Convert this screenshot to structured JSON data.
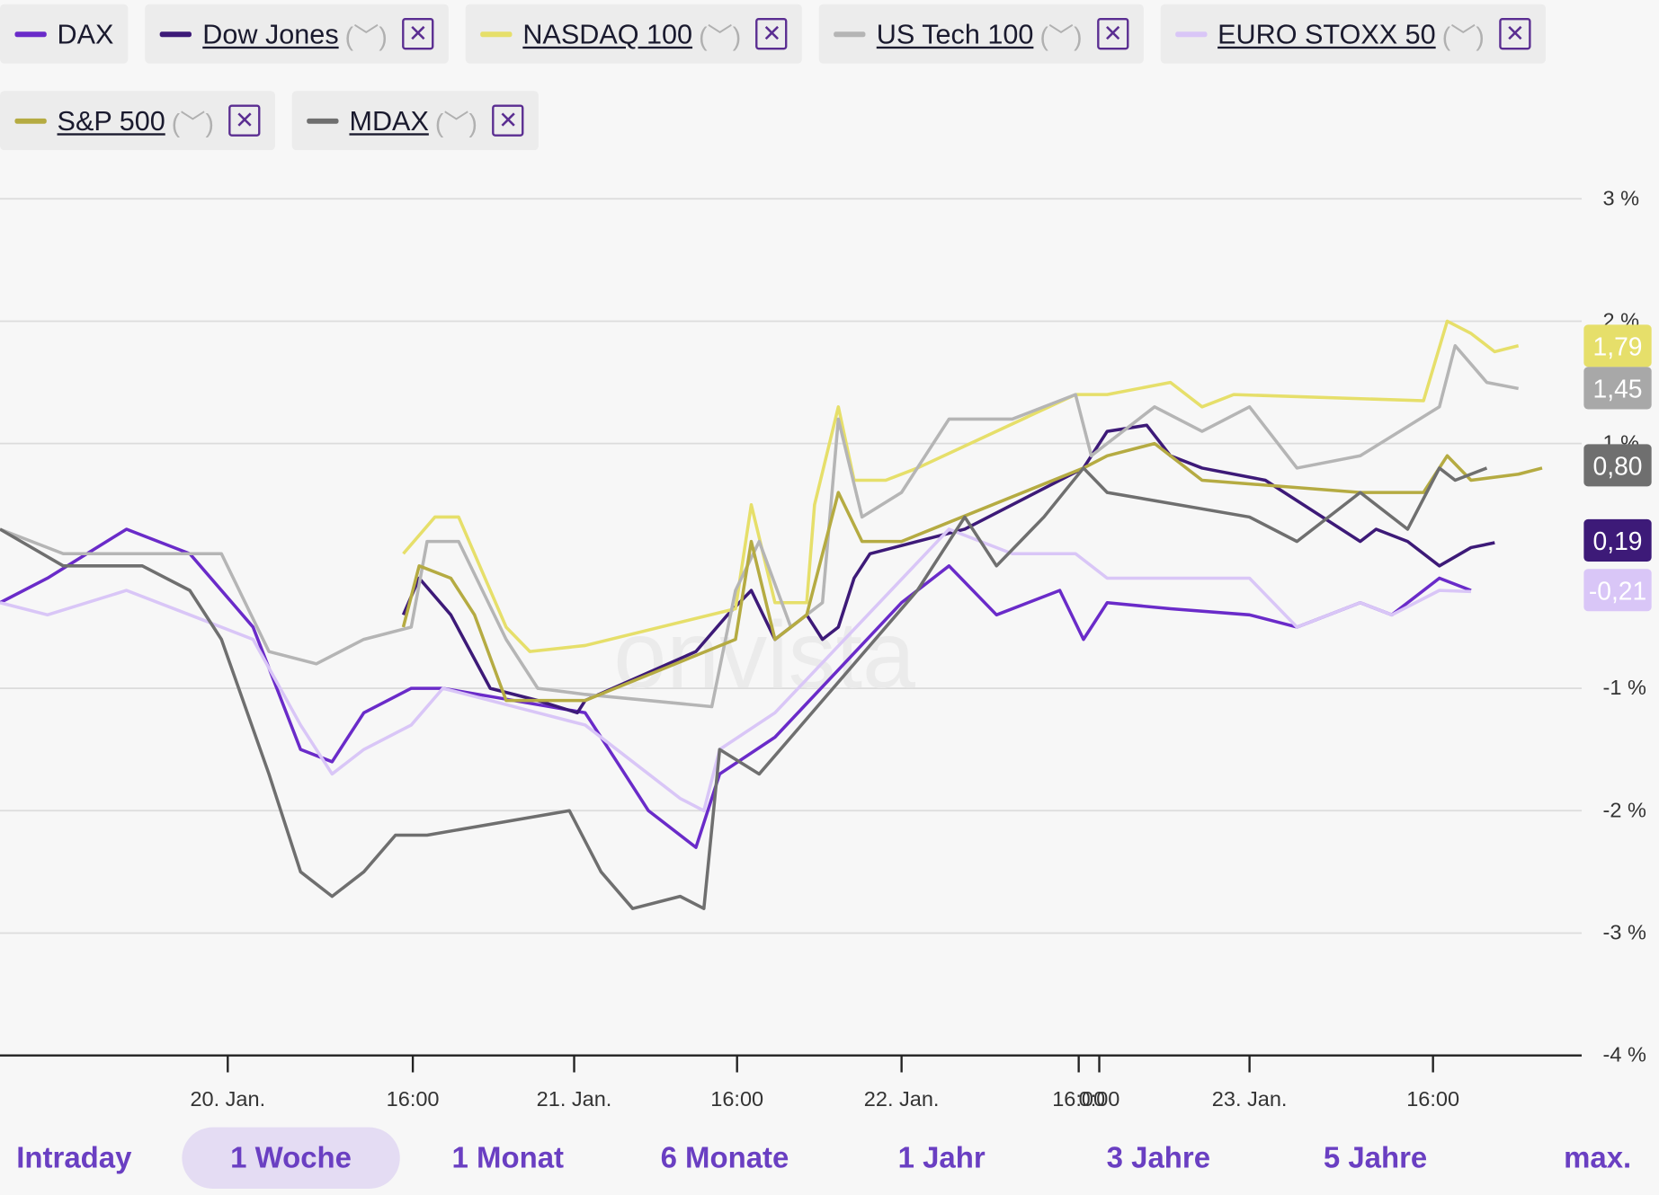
{
  "legend": [
    {
      "name": "DAX",
      "color": "#6a2bc9",
      "removable": false
    },
    {
      "name": "Dow Jones",
      "color": "#3d1a78",
      "removable": true
    },
    {
      "name": "NASDAQ 100",
      "color": "#e6df6a",
      "removable": true
    },
    {
      "name": "US Tech 100",
      "color": "#b5b5b5",
      "removable": true
    },
    {
      "name": "EURO STOXX 50",
      "color": "#d9c6f7",
      "removable": true
    },
    {
      "name": "S&P 500",
      "color": "#b5ab42",
      "removable": true
    },
    {
      "name": "MDAX",
      "color": "#6f6f6f",
      "removable": true
    }
  ],
  "chip_text": {
    "chevron": "(﹀)",
    "close": "✕"
  },
  "watermark": "onvista",
  "tabs": [
    {
      "label": "Intraday",
      "active": false
    },
    {
      "label": "1 Woche",
      "active": true
    },
    {
      "label": "1 Monat",
      "active": false
    },
    {
      "label": "6 Monate",
      "active": false
    },
    {
      "label": "1 Jahr",
      "active": false
    },
    {
      "label": "3 Jahre",
      "active": false
    },
    {
      "label": "5 Jahre",
      "active": false
    },
    {
      "label": "max.",
      "active": false
    }
  ],
  "chart_data": {
    "type": "line",
    "ylim": [
      -4,
      3
    ],
    "y_ticks": [
      {
        "v": 3,
        "label": "3 %"
      },
      {
        "v": 2,
        "label": "2 %"
      },
      {
        "v": 1,
        "label": "1 %"
      },
      {
        "v": -1,
        "label": "-1 %"
      },
      {
        "v": -2,
        "label": "-2 %"
      },
      {
        "v": -3,
        "label": "-3 %"
      },
      {
        "v": -4,
        "label": "-4 %"
      }
    ],
    "x_ticks": [
      {
        "t": 0.144,
        "label": "20. Jan."
      },
      {
        "t": 0.261,
        "label": "16:00"
      },
      {
        "t": 0.363,
        "label": "21. Jan."
      },
      {
        "t": 0.466,
        "label": "16:00"
      },
      {
        "t": 0.57,
        "label": "22. Jan."
      },
      {
        "t": 0.682,
        "label": "16:00"
      },
      {
        "t": 0.695,
        "label": "0:00"
      },
      {
        "t": 0.79,
        "label": "23. Jan."
      },
      {
        "t": 0.906,
        "label": "16:00"
      }
    ],
    "end_labels": [
      {
        "label": "1,79",
        "value": 1.79,
        "color": "#e6df6a"
      },
      {
        "label": "1,45",
        "value": 1.45,
        "color": "#a8a8a8"
      },
      {
        "label": "0,80",
        "value": 0.8,
        "color": "#6f6f6f"
      },
      {
        "label": "0,19",
        "value": 0.19,
        "color": "#3d1a78"
      },
      {
        "label": "-0,21",
        "value": -0.21,
        "color": "#d9c6f7"
      }
    ],
    "series": [
      {
        "name": "DAX",
        "color": "#6a2bc9",
        "points": [
          [
            0,
            -0.3
          ],
          [
            0.03,
            -0.1
          ],
          [
            0.08,
            0.3
          ],
          [
            0.12,
            0.1
          ],
          [
            0.16,
            -0.5
          ],
          [
            0.19,
            -1.5
          ],
          [
            0.21,
            -1.6
          ],
          [
            0.23,
            -1.2
          ],
          [
            0.26,
            -1.0
          ],
          [
            0.28,
            -1.0
          ],
          [
            0.37,
            -1.2
          ],
          [
            0.39,
            -1.6
          ],
          [
            0.41,
            -2.0
          ],
          [
            0.44,
            -2.3
          ],
          [
            0.455,
            -1.7
          ],
          [
            0.49,
            -1.4
          ],
          [
            0.57,
            -0.3
          ],
          [
            0.6,
            0.0
          ],
          [
            0.63,
            -0.4
          ],
          [
            0.67,
            -0.2
          ],
          [
            0.685,
            -0.6
          ],
          [
            0.7,
            -0.3
          ],
          [
            0.74,
            -0.35
          ],
          [
            0.79,
            -0.4
          ],
          [
            0.82,
            -0.5
          ],
          [
            0.86,
            -0.3
          ],
          [
            0.88,
            -0.4
          ],
          [
            0.91,
            -0.1
          ],
          [
            0.93,
            -0.2
          ]
        ]
      },
      {
        "name": "Dow Jones",
        "color": "#3d1a78",
        "points": [
          [
            0.255,
            -0.4
          ],
          [
            0.265,
            -0.1
          ],
          [
            0.285,
            -0.4
          ],
          [
            0.31,
            -1.0
          ],
          [
            0.34,
            -1.1
          ],
          [
            0.365,
            -1.2
          ],
          [
            0.37,
            -1.1
          ],
          [
            0.44,
            -0.7
          ],
          [
            0.46,
            -0.4
          ],
          [
            0.475,
            -0.2
          ],
          [
            0.49,
            -0.6
          ],
          [
            0.51,
            -0.4
          ],
          [
            0.52,
            -0.6
          ],
          [
            0.53,
            -0.5
          ],
          [
            0.54,
            -0.1
          ],
          [
            0.55,
            0.1
          ],
          [
            0.61,
            0.3
          ],
          [
            0.685,
            0.8
          ],
          [
            0.7,
            1.1
          ],
          [
            0.725,
            1.15
          ],
          [
            0.74,
            0.9
          ],
          [
            0.76,
            0.8
          ],
          [
            0.8,
            0.7
          ],
          [
            0.86,
            0.2
          ],
          [
            0.87,
            0.3
          ],
          [
            0.89,
            0.2
          ],
          [
            0.91,
            0.0
          ],
          [
            0.93,
            0.15
          ],
          [
            0.945,
            0.19
          ]
        ]
      },
      {
        "name": "NASDAQ 100",
        "color": "#e6df6a",
        "points": [
          [
            0.255,
            0.1
          ],
          [
            0.275,
            0.4
          ],
          [
            0.29,
            0.4
          ],
          [
            0.32,
            -0.5
          ],
          [
            0.335,
            -0.7
          ],
          [
            0.37,
            -0.65
          ],
          [
            0.465,
            -0.35
          ],
          [
            0.475,
            0.5
          ],
          [
            0.49,
            -0.3
          ],
          [
            0.51,
            -0.3
          ],
          [
            0.515,
            0.5
          ],
          [
            0.53,
            1.3
          ],
          [
            0.54,
            0.7
          ],
          [
            0.56,
            0.7
          ],
          [
            0.58,
            0.8
          ],
          [
            0.68,
            1.4
          ],
          [
            0.7,
            1.4
          ],
          [
            0.74,
            1.5
          ],
          [
            0.76,
            1.3
          ],
          [
            0.78,
            1.4
          ],
          [
            0.9,
            1.35
          ],
          [
            0.915,
            2.0
          ],
          [
            0.93,
            1.9
          ],
          [
            0.945,
            1.75
          ],
          [
            0.96,
            1.8
          ]
        ]
      },
      {
        "name": "US Tech 100",
        "color": "#b5b5b5",
        "points": [
          [
            0,
            0.3
          ],
          [
            0.04,
            0.1
          ],
          [
            0.12,
            0.1
          ],
          [
            0.14,
            0.1
          ],
          [
            0.17,
            -0.7
          ],
          [
            0.2,
            -0.8
          ],
          [
            0.23,
            -0.6
          ],
          [
            0.26,
            -0.5
          ],
          [
            0.27,
            0.2
          ],
          [
            0.29,
            0.2
          ],
          [
            0.32,
            -0.6
          ],
          [
            0.34,
            -1.0
          ],
          [
            0.37,
            -1.05
          ],
          [
            0.45,
            -1.15
          ],
          [
            0.465,
            -0.2
          ],
          [
            0.48,
            0.2
          ],
          [
            0.5,
            -0.5
          ],
          [
            0.52,
            -0.3
          ],
          [
            0.53,
            1.2
          ],
          [
            0.545,
            0.4
          ],
          [
            0.57,
            0.6
          ],
          [
            0.6,
            1.2
          ],
          [
            0.64,
            1.2
          ],
          [
            0.68,
            1.4
          ],
          [
            0.69,
            0.9
          ],
          [
            0.73,
            1.3
          ],
          [
            0.76,
            1.1
          ],
          [
            0.79,
            1.3
          ],
          [
            0.82,
            0.8
          ],
          [
            0.86,
            0.9
          ],
          [
            0.91,
            1.3
          ],
          [
            0.92,
            1.8
          ],
          [
            0.94,
            1.5
          ],
          [
            0.96,
            1.45
          ]
        ]
      },
      {
        "name": "EURO STOXX 50",
        "color": "#d9c6f7",
        "points": [
          [
            0,
            -0.3
          ],
          [
            0.03,
            -0.4
          ],
          [
            0.08,
            -0.2
          ],
          [
            0.12,
            -0.4
          ],
          [
            0.16,
            -0.6
          ],
          [
            0.19,
            -1.3
          ],
          [
            0.21,
            -1.7
          ],
          [
            0.23,
            -1.5
          ],
          [
            0.26,
            -1.3
          ],
          [
            0.28,
            -1.0
          ],
          [
            0.34,
            -1.2
          ],
          [
            0.37,
            -1.3
          ],
          [
            0.4,
            -1.6
          ],
          [
            0.43,
            -1.9
          ],
          [
            0.445,
            -2.0
          ],
          [
            0.455,
            -1.5
          ],
          [
            0.49,
            -1.2
          ],
          [
            0.6,
            0.3
          ],
          [
            0.64,
            0.1
          ],
          [
            0.68,
            0.1
          ],
          [
            0.7,
            -0.1
          ],
          [
            0.74,
            -0.1
          ],
          [
            0.79,
            -0.1
          ],
          [
            0.82,
            -0.5
          ],
          [
            0.86,
            -0.3
          ],
          [
            0.88,
            -0.4
          ],
          [
            0.91,
            -0.2
          ],
          [
            0.93,
            -0.21
          ]
        ]
      },
      {
        "name": "S&P 500",
        "color": "#b5ab42",
        "points": [
          [
            0.255,
            -0.5
          ],
          [
            0.265,
            0.0
          ],
          [
            0.285,
            -0.1
          ],
          [
            0.3,
            -0.4
          ],
          [
            0.32,
            -1.1
          ],
          [
            0.37,
            -1.1
          ],
          [
            0.465,
            -0.6
          ],
          [
            0.475,
            0.2
          ],
          [
            0.49,
            -0.6
          ],
          [
            0.51,
            -0.4
          ],
          [
            0.53,
            0.6
          ],
          [
            0.545,
            0.2
          ],
          [
            0.57,
            0.2
          ],
          [
            0.685,
            0.8
          ],
          [
            0.7,
            0.9
          ],
          [
            0.73,
            1.0
          ],
          [
            0.76,
            0.7
          ],
          [
            0.86,
            0.6
          ],
          [
            0.9,
            0.6
          ],
          [
            0.915,
            0.9
          ],
          [
            0.93,
            0.7
          ],
          [
            0.96,
            0.75
          ],
          [
            0.975,
            0.8
          ]
        ]
      },
      {
        "name": "MDAX",
        "color": "#6f6f6f",
        "points": [
          [
            0,
            0.3
          ],
          [
            0.04,
            0.0
          ],
          [
            0.09,
            0.0
          ],
          [
            0.12,
            -0.2
          ],
          [
            0.14,
            -0.6
          ],
          [
            0.17,
            -1.7
          ],
          [
            0.19,
            -2.5
          ],
          [
            0.21,
            -2.7
          ],
          [
            0.23,
            -2.5
          ],
          [
            0.25,
            -2.2
          ],
          [
            0.27,
            -2.2
          ],
          [
            0.36,
            -2.0
          ],
          [
            0.38,
            -2.5
          ],
          [
            0.4,
            -2.8
          ],
          [
            0.43,
            -2.7
          ],
          [
            0.445,
            -2.8
          ],
          [
            0.455,
            -1.5
          ],
          [
            0.48,
            -1.7
          ],
          [
            0.58,
            -0.2
          ],
          [
            0.61,
            0.4
          ],
          [
            0.63,
            0.0
          ],
          [
            0.66,
            0.4
          ],
          [
            0.685,
            0.8
          ],
          [
            0.7,
            0.6
          ],
          [
            0.79,
            0.4
          ],
          [
            0.82,
            0.2
          ],
          [
            0.86,
            0.6
          ],
          [
            0.89,
            0.3
          ],
          [
            0.91,
            0.8
          ],
          [
            0.92,
            0.7
          ],
          [
            0.94,
            0.8
          ]
        ]
      }
    ]
  }
}
